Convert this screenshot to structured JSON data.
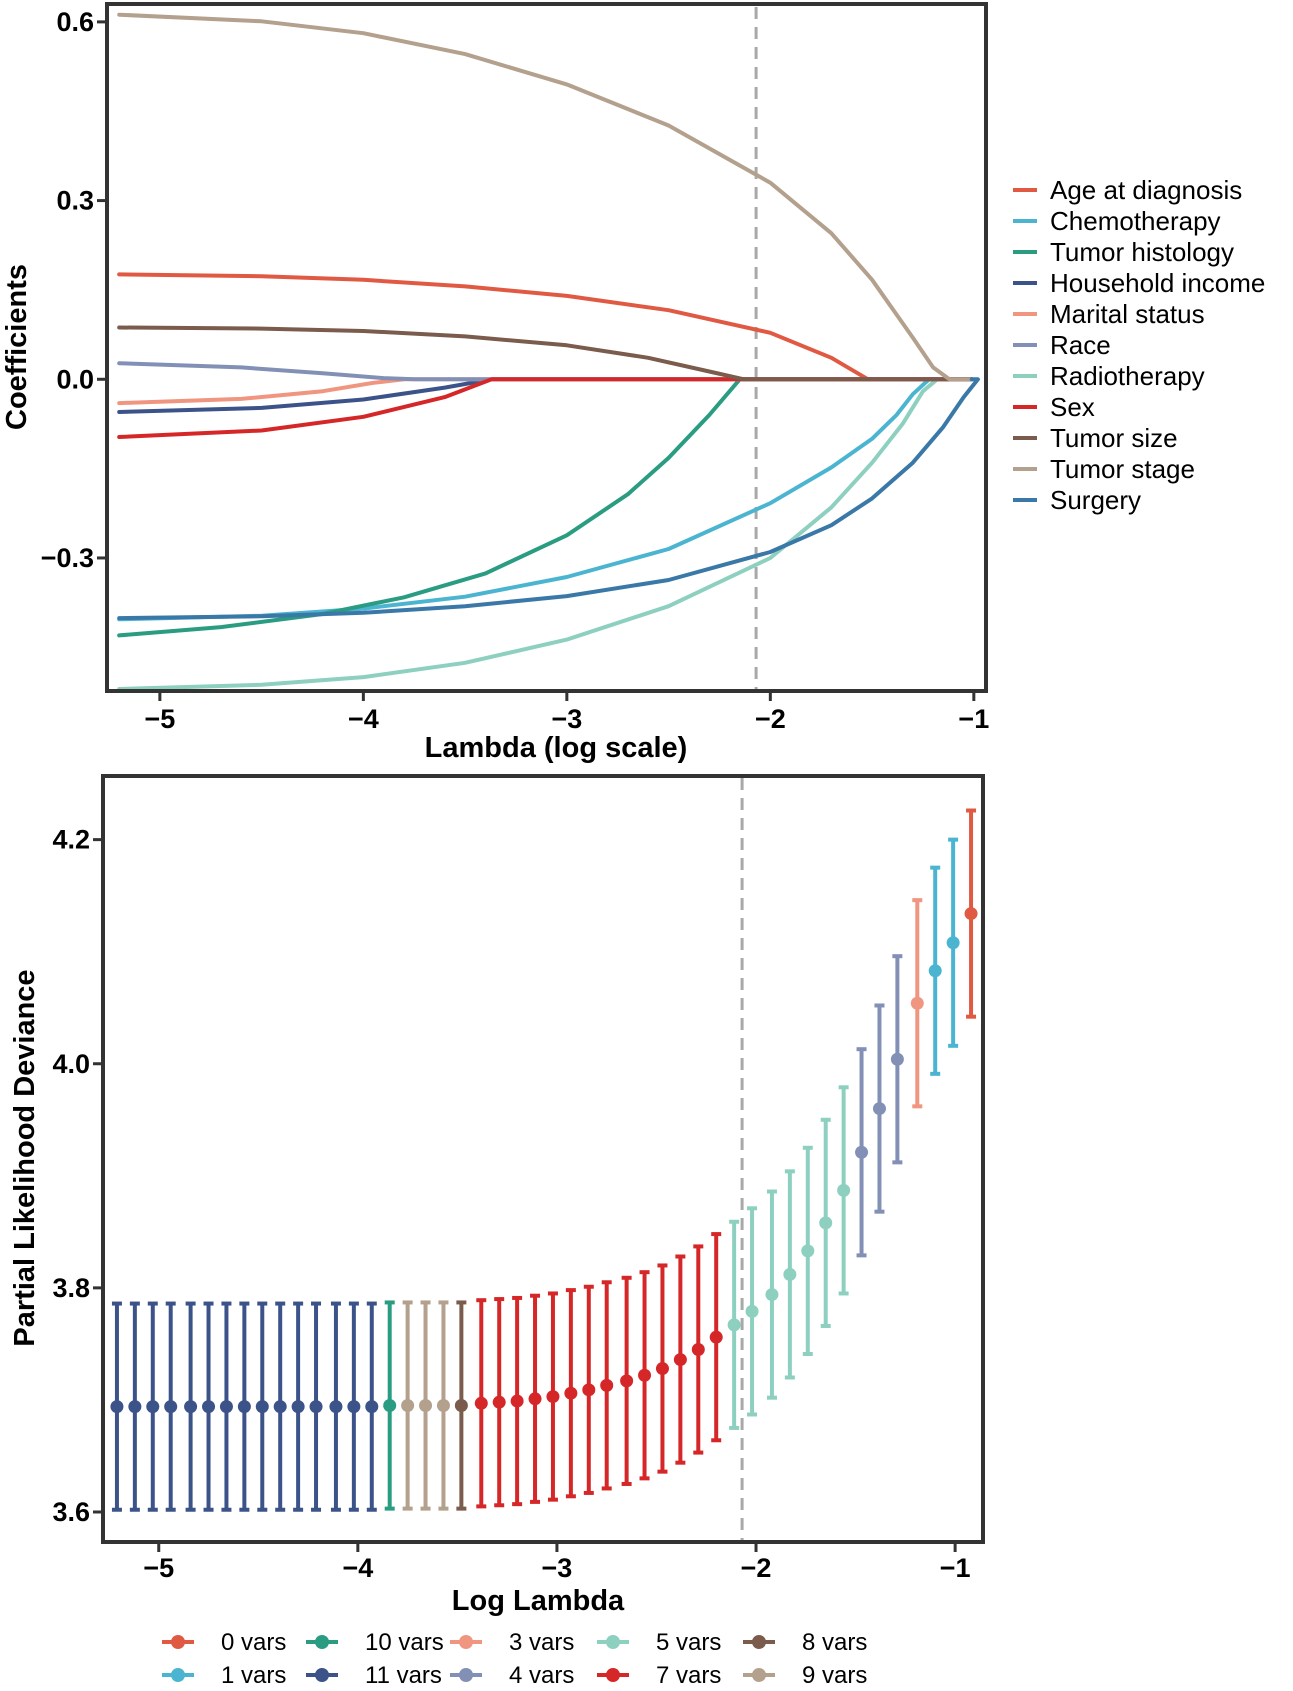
{
  "chart_data": [
    {
      "type": "line",
      "title": "",
      "xlabel": "Lambda (log scale)",
      "ylabel": "Coefficients",
      "xlim": [
        -5.25,
        -0.95
      ],
      "ylim": [
        -0.52,
        0.625
      ],
      "xticks": [
        -5,
        -4,
        -3,
        -2,
        -1
      ],
      "xtick_labels": [
        "−5",
        "−4",
        "−3",
        "−2",
        "−1"
      ],
      "yticks": [
        0.6,
        0.3,
        0.0,
        -0.3
      ],
      "ytick_labels": [
        "0.6",
        "0.3",
        "0.0",
        "−0.3"
      ],
      "vline": -2.07,
      "legend_position": "right",
      "series": [
        {
          "name": "Age at diagnosis",
          "color": "#E05A43",
          "x": [
            -5.2,
            -4.5,
            -4.0,
            -3.5,
            -3.0,
            -2.5,
            -2.0,
            -1.7,
            -1.52
          ],
          "y": [
            0.176,
            0.173,
            0.167,
            0.156,
            0.14,
            0.116,
            0.078,
            0.036,
            0.0
          ]
        },
        {
          "name": "Chemotherapy",
          "color": "#4BB5D1",
          "x": [
            -5.2,
            -4.5,
            -4.0,
            -3.5,
            -3.0,
            -2.5,
            -2.0,
            -1.7,
            -1.5,
            -1.38,
            -1.3,
            -1.22
          ],
          "y": [
            -0.403,
            -0.397,
            -0.385,
            -0.365,
            -0.332,
            -0.285,
            -0.208,
            -0.148,
            -0.1,
            -0.06,
            -0.025,
            0.0
          ]
        },
        {
          "name": "Tumor histology",
          "color": "#2A9C82",
          "x": [
            -5.2,
            -4.7,
            -4.2,
            -3.8,
            -3.4,
            -3.0,
            -2.7,
            -2.5,
            -2.3,
            -2.15
          ],
          "y": [
            -0.43,
            -0.416,
            -0.394,
            -0.366,
            -0.326,
            -0.262,
            -0.193,
            -0.132,
            -0.06,
            0.0
          ]
        },
        {
          "name": "Household income",
          "color": "#3B5389",
          "x": [
            -5.2,
            -4.5,
            -4.0,
            -3.6,
            -3.37
          ],
          "y": [
            -0.055,
            -0.048,
            -0.034,
            -0.014,
            0.0
          ]
        },
        {
          "name": "Marital status",
          "color": "#F0957F",
          "x": [
            -5.2,
            -4.6,
            -4.2,
            -3.95,
            -3.8
          ],
          "y": [
            -0.04,
            -0.033,
            -0.02,
            -0.006,
            0.0
          ]
        },
        {
          "name": "Race",
          "color": "#8390B6",
          "x": [
            -5.2,
            -4.6,
            -4.2,
            -3.9,
            -3.75
          ],
          "y": [
            0.027,
            0.02,
            0.01,
            0.002,
            0.0
          ]
        },
        {
          "name": "Radiotherapy",
          "color": "#8DD0C0",
          "x": [
            -5.2,
            -4.5,
            -4.0,
            -3.5,
            -3.0,
            -2.5,
            -2.0,
            -1.7,
            -1.5,
            -1.35,
            -1.25,
            -1.18
          ],
          "y": [
            -0.52,
            -0.513,
            -0.5,
            -0.476,
            -0.437,
            -0.381,
            -0.3,
            -0.215,
            -0.14,
            -0.075,
            -0.02,
            0.0
          ]
        },
        {
          "name": "Sex",
          "color": "#D62728",
          "x": [
            -5.2,
            -4.5,
            -4.0,
            -3.6,
            -3.37
          ],
          "y": [
            -0.097,
            -0.086,
            -0.063,
            -0.03,
            0.0
          ]
        },
        {
          "name": "Tumor size",
          "color": "#7A5B4C",
          "x": [
            -5.2,
            -4.5,
            -4.0,
            -3.5,
            -3.0,
            -2.6,
            -2.3,
            -2.13
          ],
          "y": [
            0.087,
            0.085,
            0.081,
            0.072,
            0.057,
            0.036,
            0.013,
            0.0
          ]
        },
        {
          "name": "Tumor stage",
          "color": "#B3A08D",
          "x": [
            -5.2,
            -4.5,
            -4.0,
            -3.5,
            -3.0,
            -2.5,
            -2.0,
            -1.7,
            -1.5,
            -1.3,
            -1.2,
            -1.12
          ],
          "y": [
            0.612,
            0.601,
            0.581,
            0.546,
            0.495,
            0.426,
            0.33,
            0.245,
            0.167,
            0.07,
            0.02,
            0.0
          ]
        },
        {
          "name": "Surgery",
          "color": "#3A78A8",
          "x": [
            -5.2,
            -4.5,
            -4.0,
            -3.5,
            -3.0,
            -2.5,
            -2.0,
            -1.7,
            -1.5,
            -1.3,
            -1.15,
            -1.05,
            -0.98
          ],
          "y": [
            -0.401,
            -0.398,
            -0.392,
            -0.381,
            -0.364,
            -0.337,
            -0.29,
            -0.245,
            -0.2,
            -0.14,
            -0.08,
            -0.03,
            0.0
          ]
        }
      ]
    },
    {
      "type": "scatter",
      "title": "",
      "xlabel": "Log Lambda",
      "ylabel": "Partial Likelihood Deviance",
      "xlim": [
        -5.27,
        -0.87
      ],
      "ylim": [
        3.575,
        4.255
      ],
      "xticks": [
        -5,
        -4,
        -3,
        -2,
        -1
      ],
      "xtick_labels": [
        "−5",
        "−4",
        "−3",
        "−2",
        "−1"
      ],
      "yticks": [
        3.6,
        3.8,
        4.0,
        4.2
      ],
      "ytick_labels": [
        "3.6",
        "3.8",
        "4.0",
        "4.2"
      ],
      "vline": -2.07,
      "error_half_width": 0.092,
      "legend_position": "bottom",
      "legend": [
        {
          "label": "0 vars",
          "color": "#E05A43"
        },
        {
          "label": "10 vars",
          "color": "#2A9C82"
        },
        {
          "label": "3 vars",
          "color": "#F0957F"
        },
        {
          "label": "5 vars",
          "color": "#8DD0C0"
        },
        {
          "label": "8 vars",
          "color": "#7A5B4C"
        },
        {
          "label": "1 vars",
          "color": "#4BB5D1"
        },
        {
          "label": "11 vars",
          "color": "#3B5389"
        },
        {
          "label": "4 vars",
          "color": "#8390B6"
        },
        {
          "label": "7 vars",
          "color": "#D62728"
        },
        {
          "label": "9 vars",
          "color": "#B3A08D"
        }
      ],
      "points": [
        {
          "x": -5.21,
          "y": 3.694,
          "vars": "11 vars"
        },
        {
          "x": -5.12,
          "y": 3.694,
          "vars": "11 vars"
        },
        {
          "x": -5.03,
          "y": 3.694,
          "vars": "11 vars"
        },
        {
          "x": -4.94,
          "y": 3.694,
          "vars": "11 vars"
        },
        {
          "x": -4.84,
          "y": 3.694,
          "vars": "11 vars"
        },
        {
          "x": -4.75,
          "y": 3.694,
          "vars": "11 vars"
        },
        {
          "x": -4.66,
          "y": 3.694,
          "vars": "11 vars"
        },
        {
          "x": -4.57,
          "y": 3.694,
          "vars": "11 vars"
        },
        {
          "x": -4.48,
          "y": 3.694,
          "vars": "11 vars"
        },
        {
          "x": -4.39,
          "y": 3.694,
          "vars": "11 vars"
        },
        {
          "x": -4.3,
          "y": 3.694,
          "vars": "11 vars"
        },
        {
          "x": -4.21,
          "y": 3.694,
          "vars": "11 vars"
        },
        {
          "x": -4.11,
          "y": 3.694,
          "vars": "11 vars"
        },
        {
          "x": -4.02,
          "y": 3.694,
          "vars": "11 vars"
        },
        {
          "x": -3.93,
          "y": 3.694,
          "vars": "11 vars"
        },
        {
          "x": -3.84,
          "y": 3.695,
          "vars": "10 vars"
        },
        {
          "x": -3.75,
          "y": 3.695,
          "vars": "9 vars"
        },
        {
          "x": -3.66,
          "y": 3.695,
          "vars": "9 vars"
        },
        {
          "x": -3.57,
          "y": 3.695,
          "vars": "9 vars"
        },
        {
          "x": -3.48,
          "y": 3.695,
          "vars": "8 vars"
        },
        {
          "x": -3.38,
          "y": 3.697,
          "vars": "7 vars"
        },
        {
          "x": -3.29,
          "y": 3.698,
          "vars": "7 vars"
        },
        {
          "x": -3.2,
          "y": 3.699,
          "vars": "7 vars"
        },
        {
          "x": -3.11,
          "y": 3.701,
          "vars": "7 vars"
        },
        {
          "x": -3.02,
          "y": 3.703,
          "vars": "7 vars"
        },
        {
          "x": -2.93,
          "y": 3.706,
          "vars": "7 vars"
        },
        {
          "x": -2.84,
          "y": 3.709,
          "vars": "7 vars"
        },
        {
          "x": -2.75,
          "y": 3.713,
          "vars": "7 vars"
        },
        {
          "x": -2.65,
          "y": 3.717,
          "vars": "7 vars"
        },
        {
          "x": -2.56,
          "y": 3.722,
          "vars": "7 vars"
        },
        {
          "x": -2.47,
          "y": 3.728,
          "vars": "7 vars"
        },
        {
          "x": -2.38,
          "y": 3.736,
          "vars": "7 vars"
        },
        {
          "x": -2.29,
          "y": 3.745,
          "vars": "7 vars"
        },
        {
          "x": -2.2,
          "y": 3.756,
          "vars": "7 vars"
        },
        {
          "x": -2.11,
          "y": 3.767,
          "vars": "5 vars"
        },
        {
          "x": -2.02,
          "y": 3.779,
          "vars": "5 vars"
        },
        {
          "x": -1.92,
          "y": 3.794,
          "vars": "5 vars"
        },
        {
          "x": -1.83,
          "y": 3.812,
          "vars": "5 vars"
        },
        {
          "x": -1.74,
          "y": 3.833,
          "vars": "5 vars"
        },
        {
          "x": -1.65,
          "y": 3.858,
          "vars": "5 vars"
        },
        {
          "x": -1.56,
          "y": 3.887,
          "vars": "5 vars"
        },
        {
          "x": -1.47,
          "y": 3.921,
          "vars": "4 vars"
        },
        {
          "x": -1.38,
          "y": 3.96,
          "vars": "4 vars"
        },
        {
          "x": -1.29,
          "y": 4.004,
          "vars": "4 vars"
        },
        {
          "x": -1.19,
          "y": 4.054,
          "vars": "3 vars"
        },
        {
          "x": -1.1,
          "y": 4.083,
          "vars": "1 vars"
        },
        {
          "x": -1.01,
          "y": 4.108,
          "vars": "1 vars"
        },
        {
          "x": -0.92,
          "y": 4.134,
          "vars": "0 vars"
        }
      ]
    }
  ]
}
